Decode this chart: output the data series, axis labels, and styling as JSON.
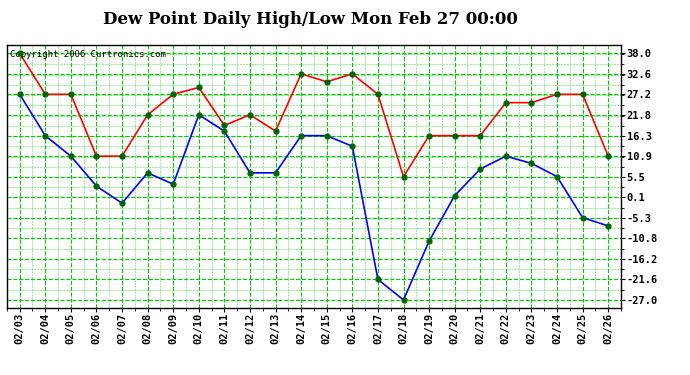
{
  "title": "Dew Point Daily High/Low Mon Feb 27 00:00",
  "copyright": "Copyright 2006 Curtronics.com",
  "x_labels": [
    "02/03",
    "02/04",
    "02/05",
    "02/06",
    "02/07",
    "02/08",
    "02/09",
    "02/10",
    "02/11",
    "02/12",
    "02/13",
    "02/14",
    "02/15",
    "02/16",
    "02/17",
    "02/18",
    "02/19",
    "02/20",
    "02/21",
    "02/22",
    "02/23",
    "02/24",
    "02/25",
    "02/26"
  ],
  "high_values": [
    38.0,
    27.2,
    27.2,
    10.9,
    10.9,
    21.8,
    27.2,
    29.0,
    19.0,
    21.8,
    17.5,
    32.6,
    30.5,
    32.6,
    27.2,
    5.5,
    16.3,
    16.3,
    16.3,
    25.0,
    25.0,
    27.2,
    27.2,
    10.9
  ],
  "low_values": [
    27.2,
    16.3,
    10.9,
    3.0,
    -1.5,
    6.5,
    3.5,
    21.8,
    17.5,
    6.5,
    6.5,
    16.3,
    16.3,
    13.5,
    -21.6,
    -27.0,
    -11.5,
    0.5,
    7.5,
    10.9,
    9.0,
    5.5,
    -5.3,
    -7.5
  ],
  "high_color": "#ff0000",
  "low_color": "#0000ff",
  "marker_color": "#006400",
  "bg_color": "#ffffff",
  "grid_color": "#00cc00",
  "y_ticks": [
    38.0,
    32.6,
    27.2,
    21.8,
    16.3,
    10.9,
    5.5,
    0.1,
    -5.3,
    -10.8,
    -16.2,
    -21.6,
    -27.0
  ],
  "ylim": [
    -29.0,
    40.2
  ],
  "xlim": [
    -0.5,
    23.5
  ],
  "title_fontsize": 12,
  "tick_fontsize": 7.5,
  "copyright_fontsize": 6.5
}
